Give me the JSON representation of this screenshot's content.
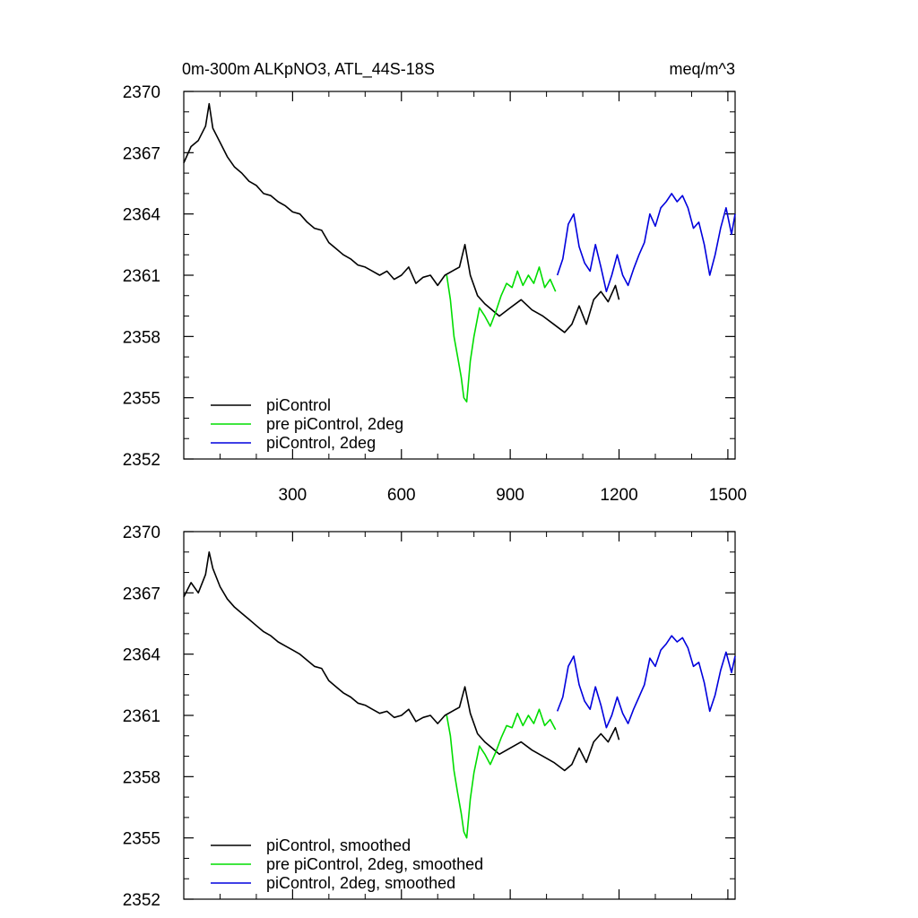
{
  "chart_data": [
    {
      "type": "line",
      "title": "0m-300m ALKpNO3, ATL_44S-18S",
      "units_label": "meq/m^3",
      "xlim": [
        0,
        1520
      ],
      "ylim": [
        2352,
        2370
      ],
      "x_ticks": [
        300,
        600,
        900,
        1200,
        1500
      ],
      "y_ticks": [
        2352,
        2355,
        2358,
        2361,
        2364,
        2367,
        2370
      ],
      "x_tick_labels": [
        "300",
        "600",
        "900",
        "1200",
        "1500"
      ],
      "y_tick_labels": [
        "2352",
        "2355",
        "2358",
        "2361",
        "2364",
        "2367",
        "2370"
      ],
      "legend_placement": "bottom-left",
      "series": [
        {
          "name": "piControl",
          "color": "#000000",
          "x": [
            0,
            20,
            40,
            60,
            70,
            80,
            100,
            120,
            140,
            160,
            180,
            200,
            220,
            240,
            260,
            280,
            300,
            320,
            340,
            360,
            380,
            400,
            420,
            440,
            460,
            480,
            500,
            520,
            540,
            560,
            580,
            600,
            620,
            640,
            660,
            680,
            700,
            720,
            740,
            760,
            775,
            790,
            810,
            830,
            850,
            870,
            900,
            930,
            960,
            990,
            1020,
            1050,
            1070,
            1090,
            1110,
            1130,
            1150,
            1170,
            1190,
            1200
          ],
          "y": [
            2366.5,
            2367.3,
            2367.6,
            2368.3,
            2369.4,
            2368.2,
            2367.5,
            2366.8,
            2366.3,
            2366.0,
            2365.6,
            2365.4,
            2365.0,
            2364.9,
            2364.6,
            2364.4,
            2364.1,
            2364.0,
            2363.6,
            2363.3,
            2363.2,
            2362.6,
            2362.3,
            2362.0,
            2361.8,
            2361.5,
            2361.4,
            2361.2,
            2361.0,
            2361.2,
            2360.8,
            2361.0,
            2361.4,
            2360.6,
            2360.9,
            2361.0,
            2360.5,
            2361.0,
            2361.2,
            2361.4,
            2362.5,
            2361.0,
            2360.0,
            2359.6,
            2359.3,
            2359.0,
            2359.4,
            2359.8,
            2359.3,
            2359.0,
            2358.6,
            2358.2,
            2358.6,
            2359.5,
            2358.6,
            2359.8,
            2360.2,
            2359.7,
            2360.5,
            2359.8
          ]
        },
        {
          "name": "pre piControl, 2deg",
          "color": "#00dd00",
          "x": [
            725,
            735,
            745,
            755,
            765,
            772,
            780,
            790,
            800,
            815,
            830,
            845,
            860,
            875,
            890,
            905,
            920,
            935,
            950,
            965,
            980,
            995,
            1010,
            1025
          ],
          "y": [
            2361.0,
            2359.8,
            2358.0,
            2357.0,
            2356.0,
            2355.0,
            2354.8,
            2356.8,
            2358.0,
            2359.4,
            2359.0,
            2358.5,
            2359.2,
            2360.0,
            2360.6,
            2360.4,
            2361.2,
            2360.5,
            2361.0,
            2360.6,
            2361.4,
            2360.4,
            2360.8,
            2360.2
          ]
        },
        {
          "name": "piControl, 2deg",
          "color": "#0000dd",
          "x": [
            1030,
            1045,
            1060,
            1075,
            1090,
            1105,
            1120,
            1135,
            1150,
            1165,
            1180,
            1195,
            1210,
            1225,
            1240,
            1255,
            1270,
            1285,
            1300,
            1315,
            1330,
            1345,
            1360,
            1375,
            1390,
            1405,
            1420,
            1435,
            1450,
            1465,
            1480,
            1495,
            1510,
            1520
          ],
          "y": [
            2361.0,
            2361.8,
            2363.5,
            2364.0,
            2362.4,
            2361.6,
            2361.2,
            2362.5,
            2361.4,
            2360.2,
            2361.0,
            2362.0,
            2361.0,
            2360.5,
            2361.3,
            2362.0,
            2362.6,
            2364.0,
            2363.4,
            2364.3,
            2364.6,
            2365.0,
            2364.6,
            2364.9,
            2364.3,
            2363.3,
            2363.6,
            2362.5,
            2361.0,
            2362.0,
            2363.3,
            2364.3,
            2363.0,
            2364.0
          ]
        }
      ]
    },
    {
      "type": "line",
      "xlim": [
        0,
        1520
      ],
      "ylim": [
        2352,
        2370
      ],
      "x_ticks": [
        300,
        600,
        900,
        1200,
        1500
      ],
      "y_ticks": [
        2352,
        2355,
        2358,
        2361,
        2364,
        2367,
        2370
      ],
      "y_tick_labels": [
        "2352",
        "2355",
        "2358",
        "2361",
        "2364",
        "2367",
        "2370"
      ],
      "legend_placement": "bottom-left",
      "series": [
        {
          "name": "piControl, smoothed",
          "color": "#000000",
          "x": [
            0,
            20,
            40,
            60,
            70,
            80,
            100,
            120,
            140,
            160,
            180,
            200,
            220,
            240,
            260,
            280,
            300,
            320,
            340,
            360,
            380,
            400,
            420,
            440,
            460,
            480,
            500,
            520,
            540,
            560,
            580,
            600,
            620,
            640,
            660,
            680,
            700,
            720,
            740,
            760,
            775,
            790,
            810,
            830,
            850,
            870,
            900,
            930,
            960,
            990,
            1020,
            1050,
            1070,
            1090,
            1110,
            1130,
            1150,
            1170,
            1190,
            1200
          ],
          "y": [
            2366.8,
            2367.5,
            2367.0,
            2367.9,
            2369.0,
            2368.2,
            2367.3,
            2366.7,
            2366.3,
            2366.0,
            2365.7,
            2365.4,
            2365.1,
            2364.9,
            2364.6,
            2364.4,
            2364.2,
            2364.0,
            2363.7,
            2363.4,
            2363.3,
            2362.7,
            2362.4,
            2362.1,
            2361.9,
            2361.6,
            2361.5,
            2361.3,
            2361.1,
            2361.2,
            2360.9,
            2361.0,
            2361.3,
            2360.7,
            2360.9,
            2361.0,
            2360.6,
            2361.0,
            2361.2,
            2361.4,
            2362.4,
            2361.1,
            2360.1,
            2359.7,
            2359.4,
            2359.1,
            2359.4,
            2359.7,
            2359.3,
            2359.0,
            2358.7,
            2358.3,
            2358.6,
            2359.4,
            2358.7,
            2359.7,
            2360.1,
            2359.7,
            2360.4,
            2359.8
          ]
        },
        {
          "name": "pre piControl, 2deg, smoothed",
          "color": "#00dd00",
          "x": [
            725,
            735,
            745,
            755,
            765,
            772,
            780,
            790,
            800,
            815,
            830,
            845,
            860,
            875,
            890,
            905,
            920,
            935,
            950,
            965,
            980,
            995,
            1010,
            1025
          ],
          "y": [
            2361.0,
            2360.0,
            2358.3,
            2357.2,
            2356.2,
            2355.3,
            2355.0,
            2356.9,
            2358.2,
            2359.5,
            2359.1,
            2358.6,
            2359.2,
            2359.9,
            2360.5,
            2360.4,
            2361.1,
            2360.5,
            2361.0,
            2360.6,
            2361.3,
            2360.5,
            2360.8,
            2360.3
          ]
        },
        {
          "name": "piControl, 2deg, smoothed",
          "color": "#0000dd",
          "x": [
            1030,
            1045,
            1060,
            1075,
            1090,
            1105,
            1120,
            1135,
            1150,
            1165,
            1180,
            1195,
            1210,
            1225,
            1240,
            1255,
            1270,
            1285,
            1300,
            1315,
            1330,
            1345,
            1360,
            1375,
            1390,
            1405,
            1420,
            1435,
            1450,
            1465,
            1480,
            1495,
            1510,
            1520
          ],
          "y": [
            2361.2,
            2361.9,
            2363.4,
            2363.9,
            2362.5,
            2361.7,
            2361.3,
            2362.4,
            2361.5,
            2360.4,
            2361.0,
            2361.9,
            2361.1,
            2360.6,
            2361.3,
            2361.9,
            2362.5,
            2363.8,
            2363.4,
            2364.2,
            2364.5,
            2364.9,
            2364.6,
            2364.8,
            2364.3,
            2363.4,
            2363.6,
            2362.6,
            2361.2,
            2362.0,
            2363.2,
            2364.1,
            2363.1,
            2363.9
          ]
        }
      ]
    }
  ]
}
